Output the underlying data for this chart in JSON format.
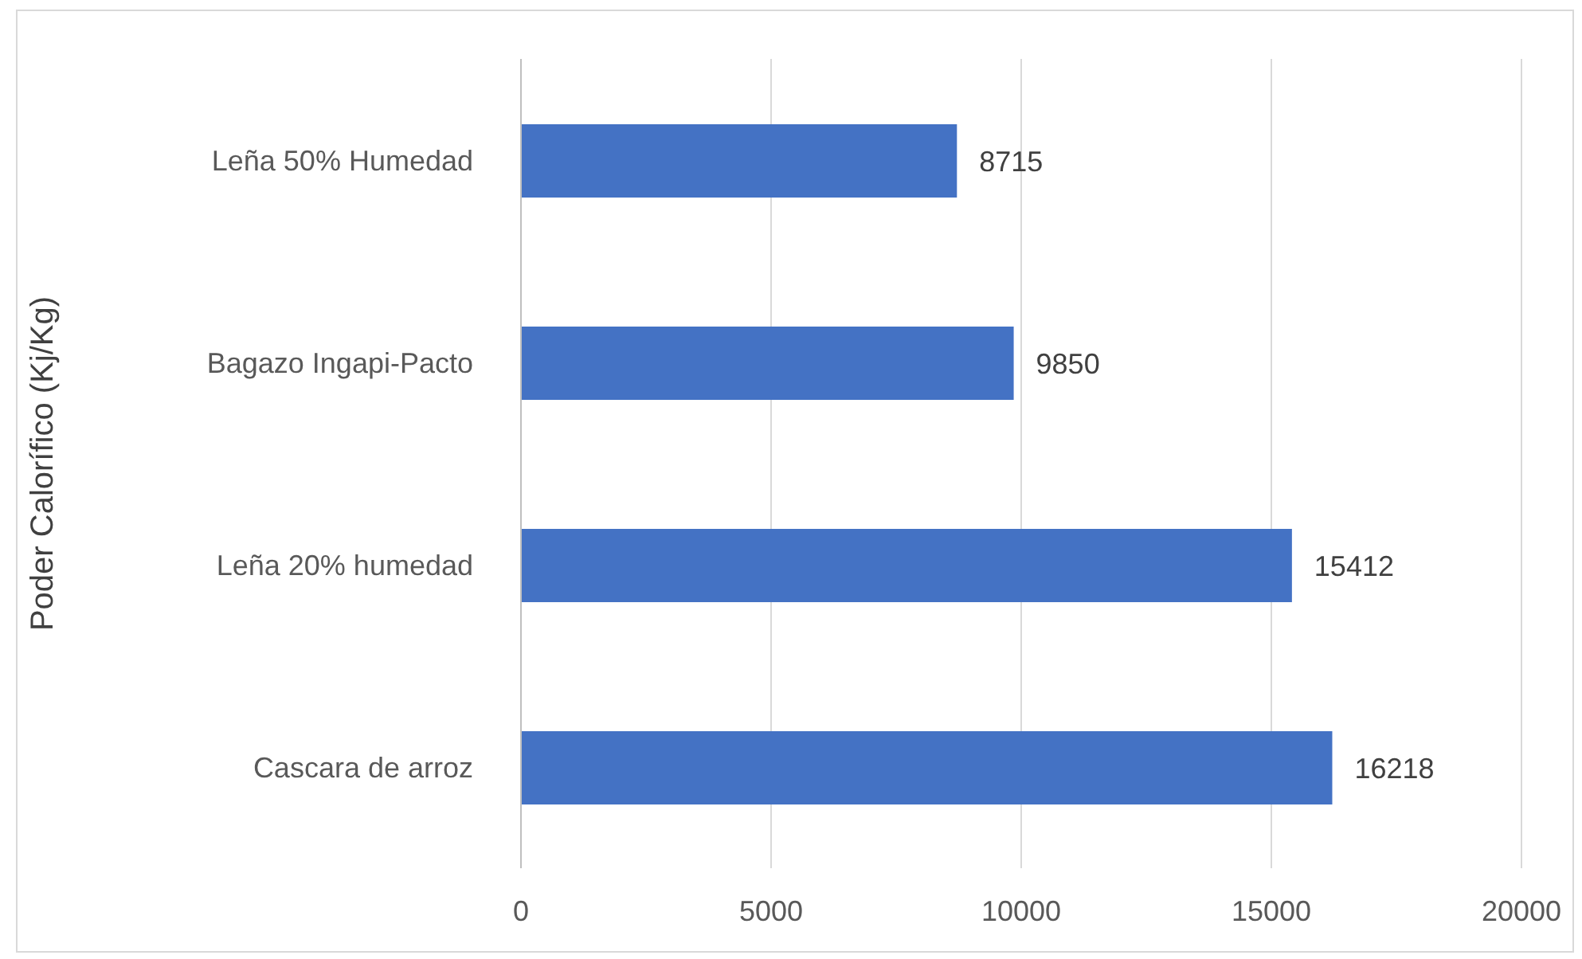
{
  "chart_data": {
    "type": "bar",
    "orientation": "horizontal",
    "ylabel": "Poder Calorífico (Kj/Kg)",
    "categories": [
      "Leña 50% Humedad",
      "Bagazo Ingapi-Pacto",
      "Leña 20% humedad",
      "Cascara de arroz"
    ],
    "values": [
      8715,
      9850,
      15412,
      16218
    ],
    "color": "#4472c4",
    "xlim": [
      0,
      20000
    ],
    "xticks": [
      0,
      5000,
      10000,
      15000,
      20000
    ],
    "grid": "x",
    "data_labels": true
  }
}
